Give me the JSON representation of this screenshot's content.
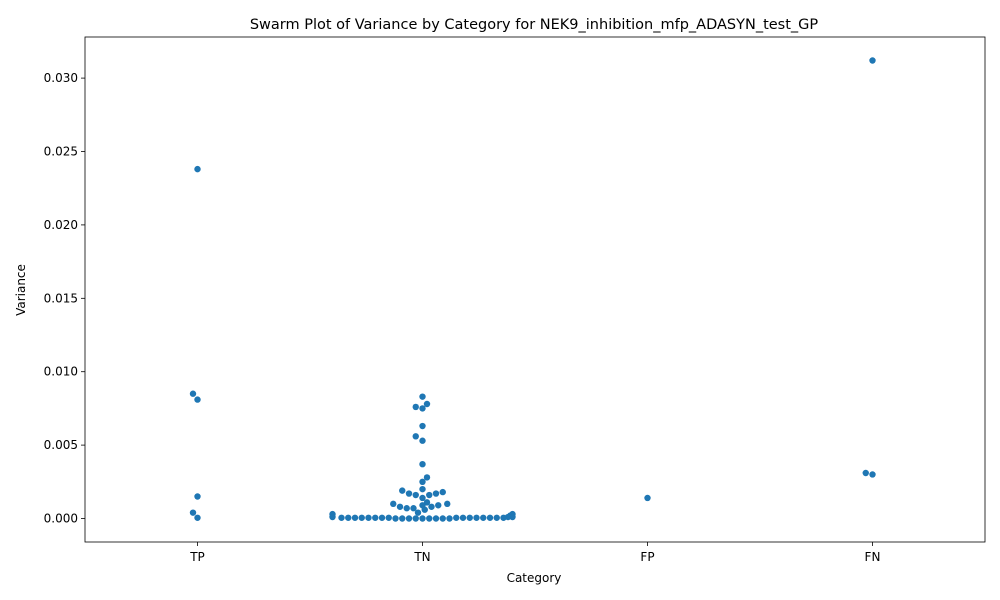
{
  "chart_data": {
    "type": "scatter",
    "subtype": "swarm",
    "title": "Swarm Plot of Variance by Category for NEK9_inhibition_mfp_ADASYN_test_GP",
    "xlabel": "Category",
    "ylabel": "Variance",
    "categories": [
      "TP",
      "TN",
      "FP",
      "FN"
    ],
    "ylim": [
      -0.0016,
      0.0328
    ],
    "yticks": [
      0.0,
      0.005,
      0.01,
      0.015,
      0.02,
      0.025,
      0.03
    ],
    "ytick_labels": [
      "0.000",
      "0.005",
      "0.010",
      "0.015",
      "0.020",
      "0.025",
      "0.030"
    ],
    "grid": false,
    "legend": false,
    "point_color": "#1f77b4",
    "series": [
      {
        "category": "TP",
        "points": [
          {
            "y": 0.0238,
            "dx": 0
          },
          {
            "y": 0.0085,
            "dx": -0.02
          },
          {
            "y": 0.0081,
            "dx": 0
          },
          {
            "y": 0.0015,
            "dx": 0
          },
          {
            "y": 0.0004,
            "dx": -0.02
          },
          {
            "y": 5e-05,
            "dx": 0
          }
        ]
      },
      {
        "category": "TN",
        "points": [
          {
            "y": 0.0083,
            "dx": 0
          },
          {
            "y": 0.0078,
            "dx": 0.02
          },
          {
            "y": 0.0076,
            "dx": -0.03
          },
          {
            "y": 0.0075,
            "dx": 0
          },
          {
            "y": 0.0063,
            "dx": 0
          },
          {
            "y": 0.0056,
            "dx": -0.03
          },
          {
            "y": 0.0053,
            "dx": 0
          },
          {
            "y": 0.0037,
            "dx": 0
          },
          {
            "y": 0.0028,
            "dx": 0.02
          },
          {
            "y": 0.0025,
            "dx": 0
          },
          {
            "y": 0.002,
            "dx": 0
          },
          {
            "y": 0.0019,
            "dx": -0.09
          },
          {
            "y": 0.0018,
            "dx": 0.09
          },
          {
            "y": 0.0017,
            "dx": -0.06
          },
          {
            "y": 0.0017,
            "dx": 0.06
          },
          {
            "y": 0.0016,
            "dx": 0.03
          },
          {
            "y": 0.0016,
            "dx": -0.03
          },
          {
            "y": 0.0014,
            "dx": 0
          },
          {
            "y": 0.0011,
            "dx": 0.02
          },
          {
            "y": 0.001,
            "dx": -0.13
          },
          {
            "y": 0.001,
            "dx": 0.11
          },
          {
            "y": 0.0009,
            "dx": 0
          },
          {
            "y": 0.0009,
            "dx": 0.07
          },
          {
            "y": 0.0008,
            "dx": -0.1
          },
          {
            "y": 0.0008,
            "dx": 0.04
          },
          {
            "y": 0.0007,
            "dx": -0.07
          },
          {
            "y": 0.0007,
            "dx": -0.04
          },
          {
            "y": 0.0006,
            "dx": 0.01
          },
          {
            "y": 0.0004,
            "dx": -0.02
          },
          {
            "y": 0.0003,
            "dx": -0.4
          },
          {
            "y": 0.0003,
            "dx": 0.4
          },
          {
            "y": 0.0002,
            "dx": 0.39
          },
          {
            "y": 0.0001,
            "dx": -0.4
          },
          {
            "y": 0.0001,
            "dx": 0.38
          },
          {
            "y": 0.0001,
            "dx": 0.4
          },
          {
            "y": 5e-05,
            "dx": -0.36
          },
          {
            "y": 5e-05,
            "dx": -0.33
          },
          {
            "y": 5e-05,
            "dx": -0.3
          },
          {
            "y": 5e-05,
            "dx": -0.27
          },
          {
            "y": 5e-05,
            "dx": -0.24
          },
          {
            "y": 5e-05,
            "dx": -0.21
          },
          {
            "y": 5e-05,
            "dx": -0.18
          },
          {
            "y": 5e-05,
            "dx": -0.15
          },
          {
            "y": 5e-05,
            "dx": 0.15
          },
          {
            "y": 5e-05,
            "dx": 0.18
          },
          {
            "y": 5e-05,
            "dx": 0.21
          },
          {
            "y": 5e-05,
            "dx": 0.24
          },
          {
            "y": 5e-05,
            "dx": 0.27
          },
          {
            "y": 5e-05,
            "dx": 0.3
          },
          {
            "y": 5e-05,
            "dx": 0.33
          },
          {
            "y": 5e-05,
            "dx": 0.36
          },
          {
            "y": 0.0,
            "dx": -0.12
          },
          {
            "y": 0.0,
            "dx": -0.09
          },
          {
            "y": 0.0,
            "dx": -0.06
          },
          {
            "y": 0.0,
            "dx": -0.03
          },
          {
            "y": 0.0,
            "dx": 0.0
          },
          {
            "y": 0.0,
            "dx": 0.03
          },
          {
            "y": 0.0,
            "dx": 0.06
          },
          {
            "y": 0.0,
            "dx": 0.09
          },
          {
            "y": 0.0,
            "dx": 0.12
          }
        ]
      },
      {
        "category": "FP",
        "points": [
          {
            "y": 0.0014,
            "dx": 0
          }
        ]
      },
      {
        "category": "FN",
        "points": [
          {
            "y": 0.0312,
            "dx": 0
          },
          {
            "y": 0.0031,
            "dx": -0.03
          },
          {
            "y": 0.003,
            "dx": 0
          }
        ]
      }
    ]
  }
}
